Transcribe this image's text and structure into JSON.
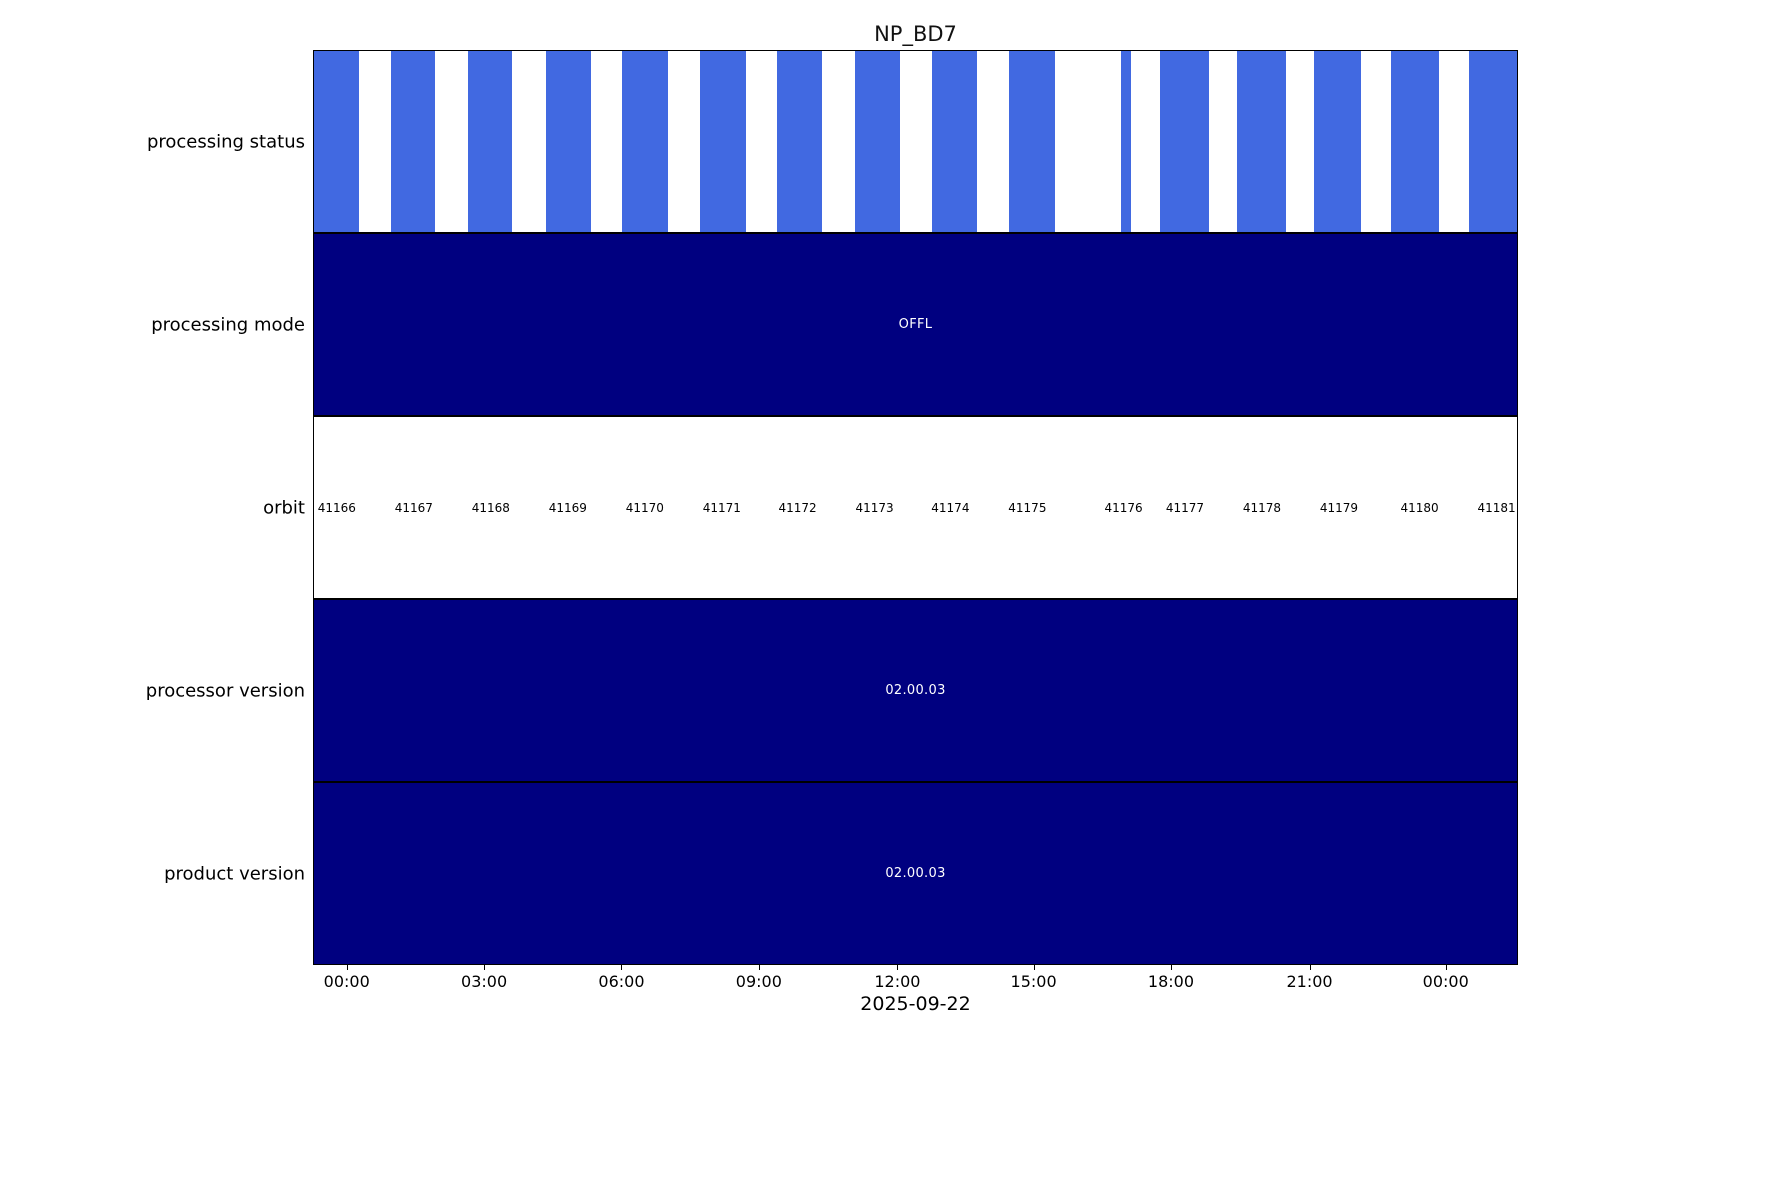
{
  "chart_data": {
    "type": "timeline",
    "title": "NP_BD7",
    "xlabel": "2025-09-22",
    "legend": "none",
    "grid": false,
    "colors": {
      "status_bar_blue": "#4169e1",
      "solid_navy": "#000080",
      "background": "#ffffff",
      "spine": "#000000"
    },
    "axis": {
      "x_ticks": [
        "00:00",
        "03:00",
        "06:00",
        "09:00",
        "12:00",
        "15:00",
        "18:00",
        "21:00",
        "00:00"
      ],
      "x_tick_positions": [
        0.028,
        0.142,
        0.256,
        0.37,
        0.485,
        0.598,
        0.712,
        0.827,
        0.94
      ]
    },
    "rows": [
      {
        "id": "processing-status",
        "label": "processing status",
        "type": "bars",
        "color": "#4169e1",
        "segments": [
          [
            0.0,
            0.037
          ],
          [
            0.064,
            0.101
          ],
          [
            0.128,
            0.165
          ],
          [
            0.193,
            0.23
          ],
          [
            0.256,
            0.294
          ],
          [
            0.321,
            0.359
          ],
          [
            0.385,
            0.422
          ],
          [
            0.45,
            0.487
          ],
          [
            0.514,
            0.551
          ],
          [
            0.578,
            0.616
          ],
          [
            0.671,
            0.679
          ],
          [
            0.703,
            0.744
          ],
          [
            0.767,
            0.808
          ],
          [
            0.831,
            0.87
          ],
          [
            0.895,
            0.935
          ],
          [
            0.96,
            1.0
          ]
        ]
      },
      {
        "id": "processing-mode",
        "label": "processing mode",
        "type": "solid",
        "color": "#000080",
        "text": "OFFL"
      },
      {
        "id": "orbit",
        "label": "orbit",
        "type": "labels",
        "values": [
          "41166",
          "41167",
          "41168",
          "41169",
          "41170",
          "41171",
          "41172",
          "41173",
          "41174",
          "41175",
          "41176",
          "41177",
          "41178",
          "41179",
          "41180",
          "41181"
        ],
        "positions": [
          0.019,
          0.083,
          0.147,
          0.211,
          0.275,
          0.339,
          0.402,
          0.466,
          0.529,
          0.593,
          0.673,
          0.724,
          0.788,
          0.852,
          0.919,
          0.983
        ]
      },
      {
        "id": "processor-version",
        "label": "processor version",
        "type": "solid",
        "color": "#000080",
        "text": "02.00.03"
      },
      {
        "id": "product-version",
        "label": "product version",
        "type": "solid",
        "color": "#000080",
        "text": "02.00.03"
      }
    ]
  }
}
